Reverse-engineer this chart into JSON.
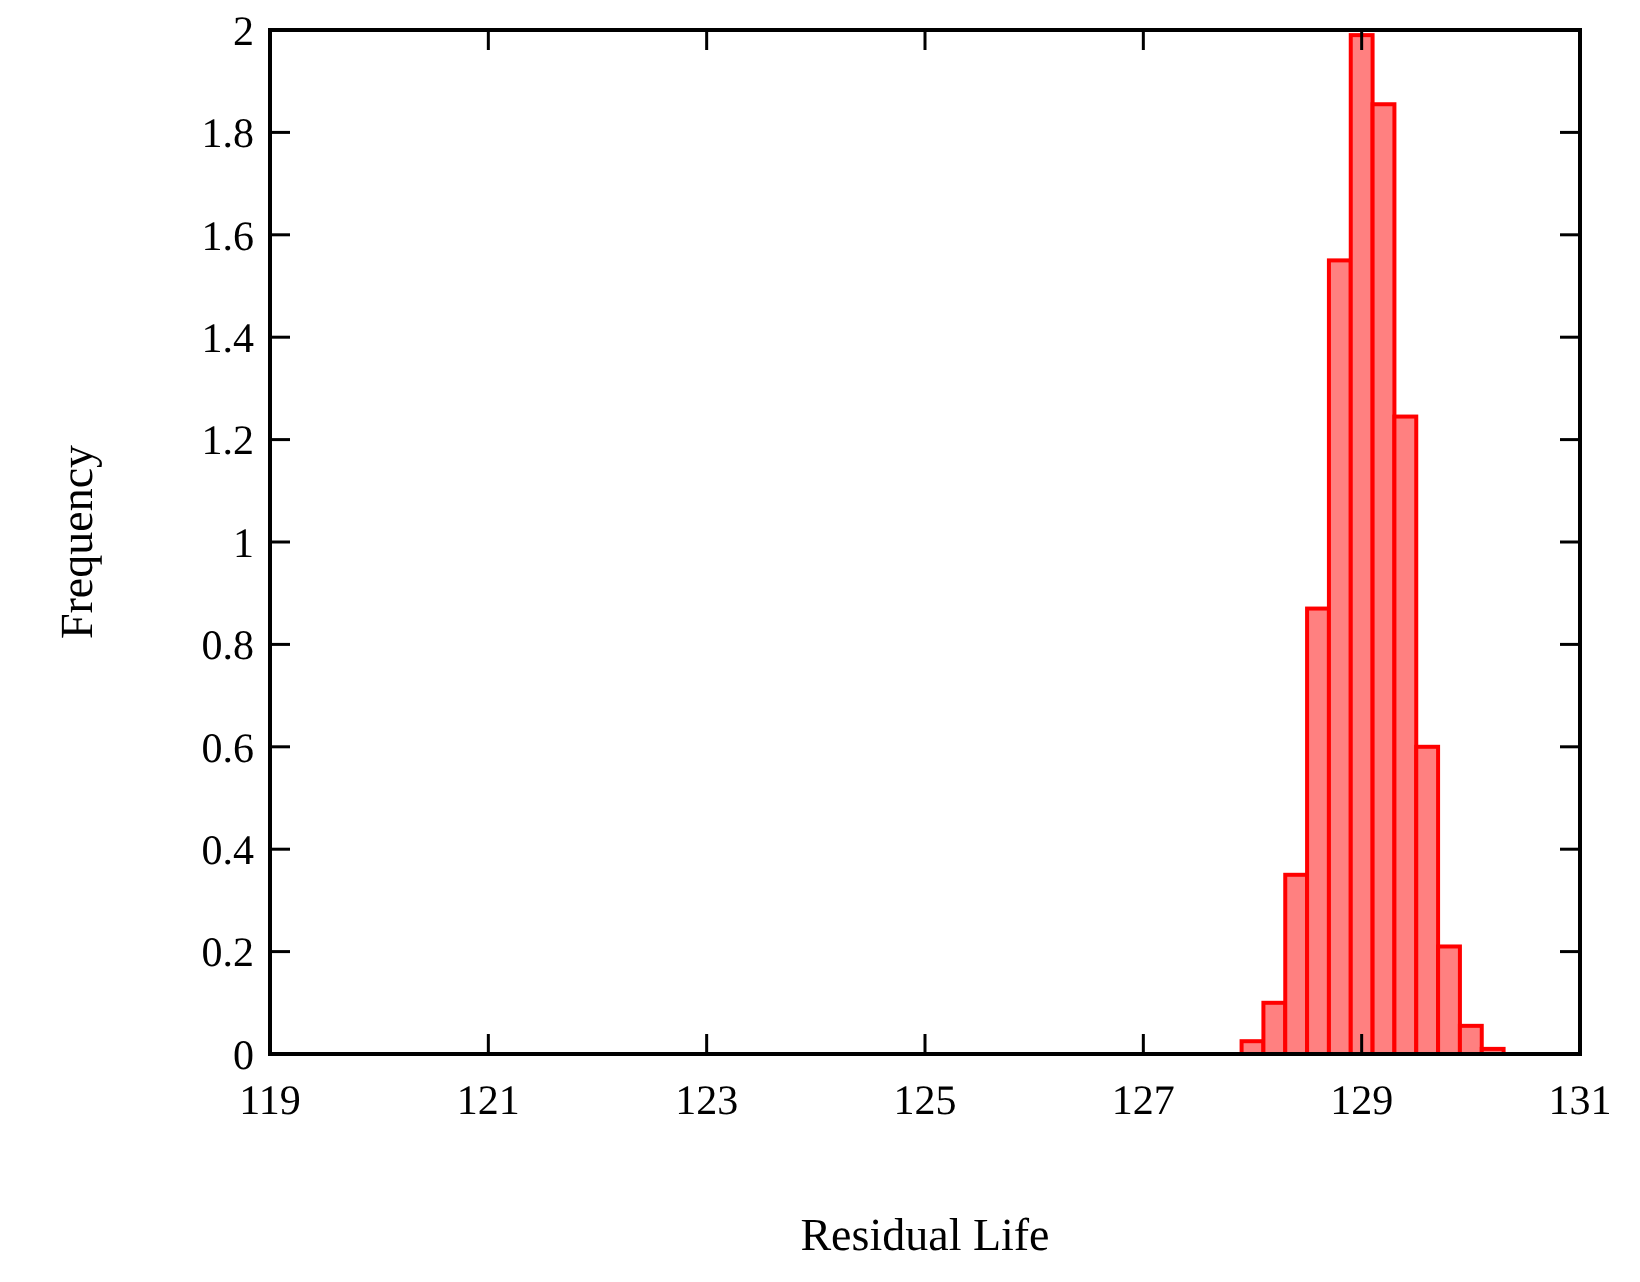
{
  "chart_data": {
    "type": "histogram",
    "xlabel": "Residual Life",
    "ylabel": "Frequency",
    "bins": [
      127.9,
      128.1,
      128.3,
      128.5,
      128.7,
      128.9,
      129.1,
      129.3,
      129.5,
      129.7,
      129.9,
      130.1,
      130.3
    ],
    "values": [
      0.025,
      0.1,
      0.35,
      0.87,
      1.55,
      1.99,
      1.855,
      1.245,
      0.6,
      0.21,
      0.055,
      0.01
    ],
    "color": "#ff8080",
    "xlim": [
      119,
      131
    ],
    "xticks": [
      119,
      121,
      123,
      125,
      127,
      129,
      131
    ],
    "ylim": [
      0,
      2
    ],
    "yticks": [
      0,
      0.2,
      0.4,
      0.6,
      0.8,
      1,
      1.2,
      1.4,
      1.6,
      1.8,
      2
    ],
    "grid": false
  }
}
